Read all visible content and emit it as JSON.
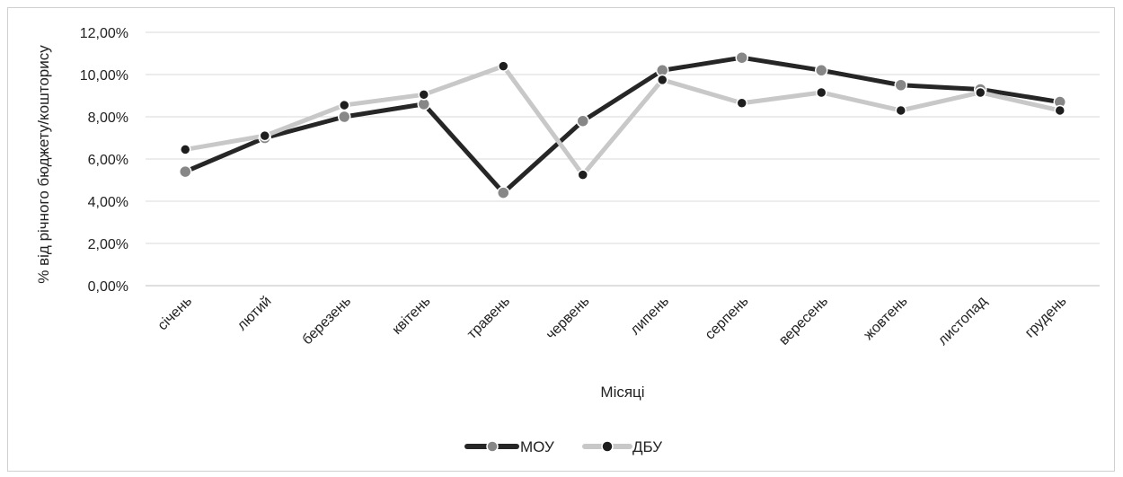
{
  "chart_data": {
    "type": "line",
    "title": "",
    "xlabel": "Місяці",
    "ylabel": "% від річного бюджету/кошторису",
    "ylim": [
      0,
      12
    ],
    "ytick_step": 2,
    "ytick_labels": [
      "0,00%",
      "2,00%",
      "4,00%",
      "6,00%",
      "8,00%",
      "10,00%",
      "12,00%"
    ],
    "grid": "horizontal",
    "legend_position": "bottom",
    "categories": [
      "січень",
      "лютий",
      "березень",
      "квітень",
      "травень",
      "червень",
      "липень",
      "серпень",
      "вересень",
      "жовтень",
      "листопад",
      "грудень"
    ],
    "series": [
      {
        "name": "МОУ",
        "line_color": "#262626",
        "marker_color": "#878787",
        "values": [
          5.4,
          7.0,
          8.0,
          8.6,
          4.4,
          7.8,
          10.2,
          10.8,
          10.2,
          9.5,
          9.3,
          8.7
        ]
      },
      {
        "name": "ДБУ",
        "line_color": "#c8c8c8",
        "marker_color": "#1e1e1e",
        "values": [
          6.45,
          7.1,
          8.55,
          9.05,
          10.4,
          5.25,
          9.75,
          8.65,
          9.15,
          8.3,
          9.15,
          8.3
        ]
      }
    ]
  }
}
